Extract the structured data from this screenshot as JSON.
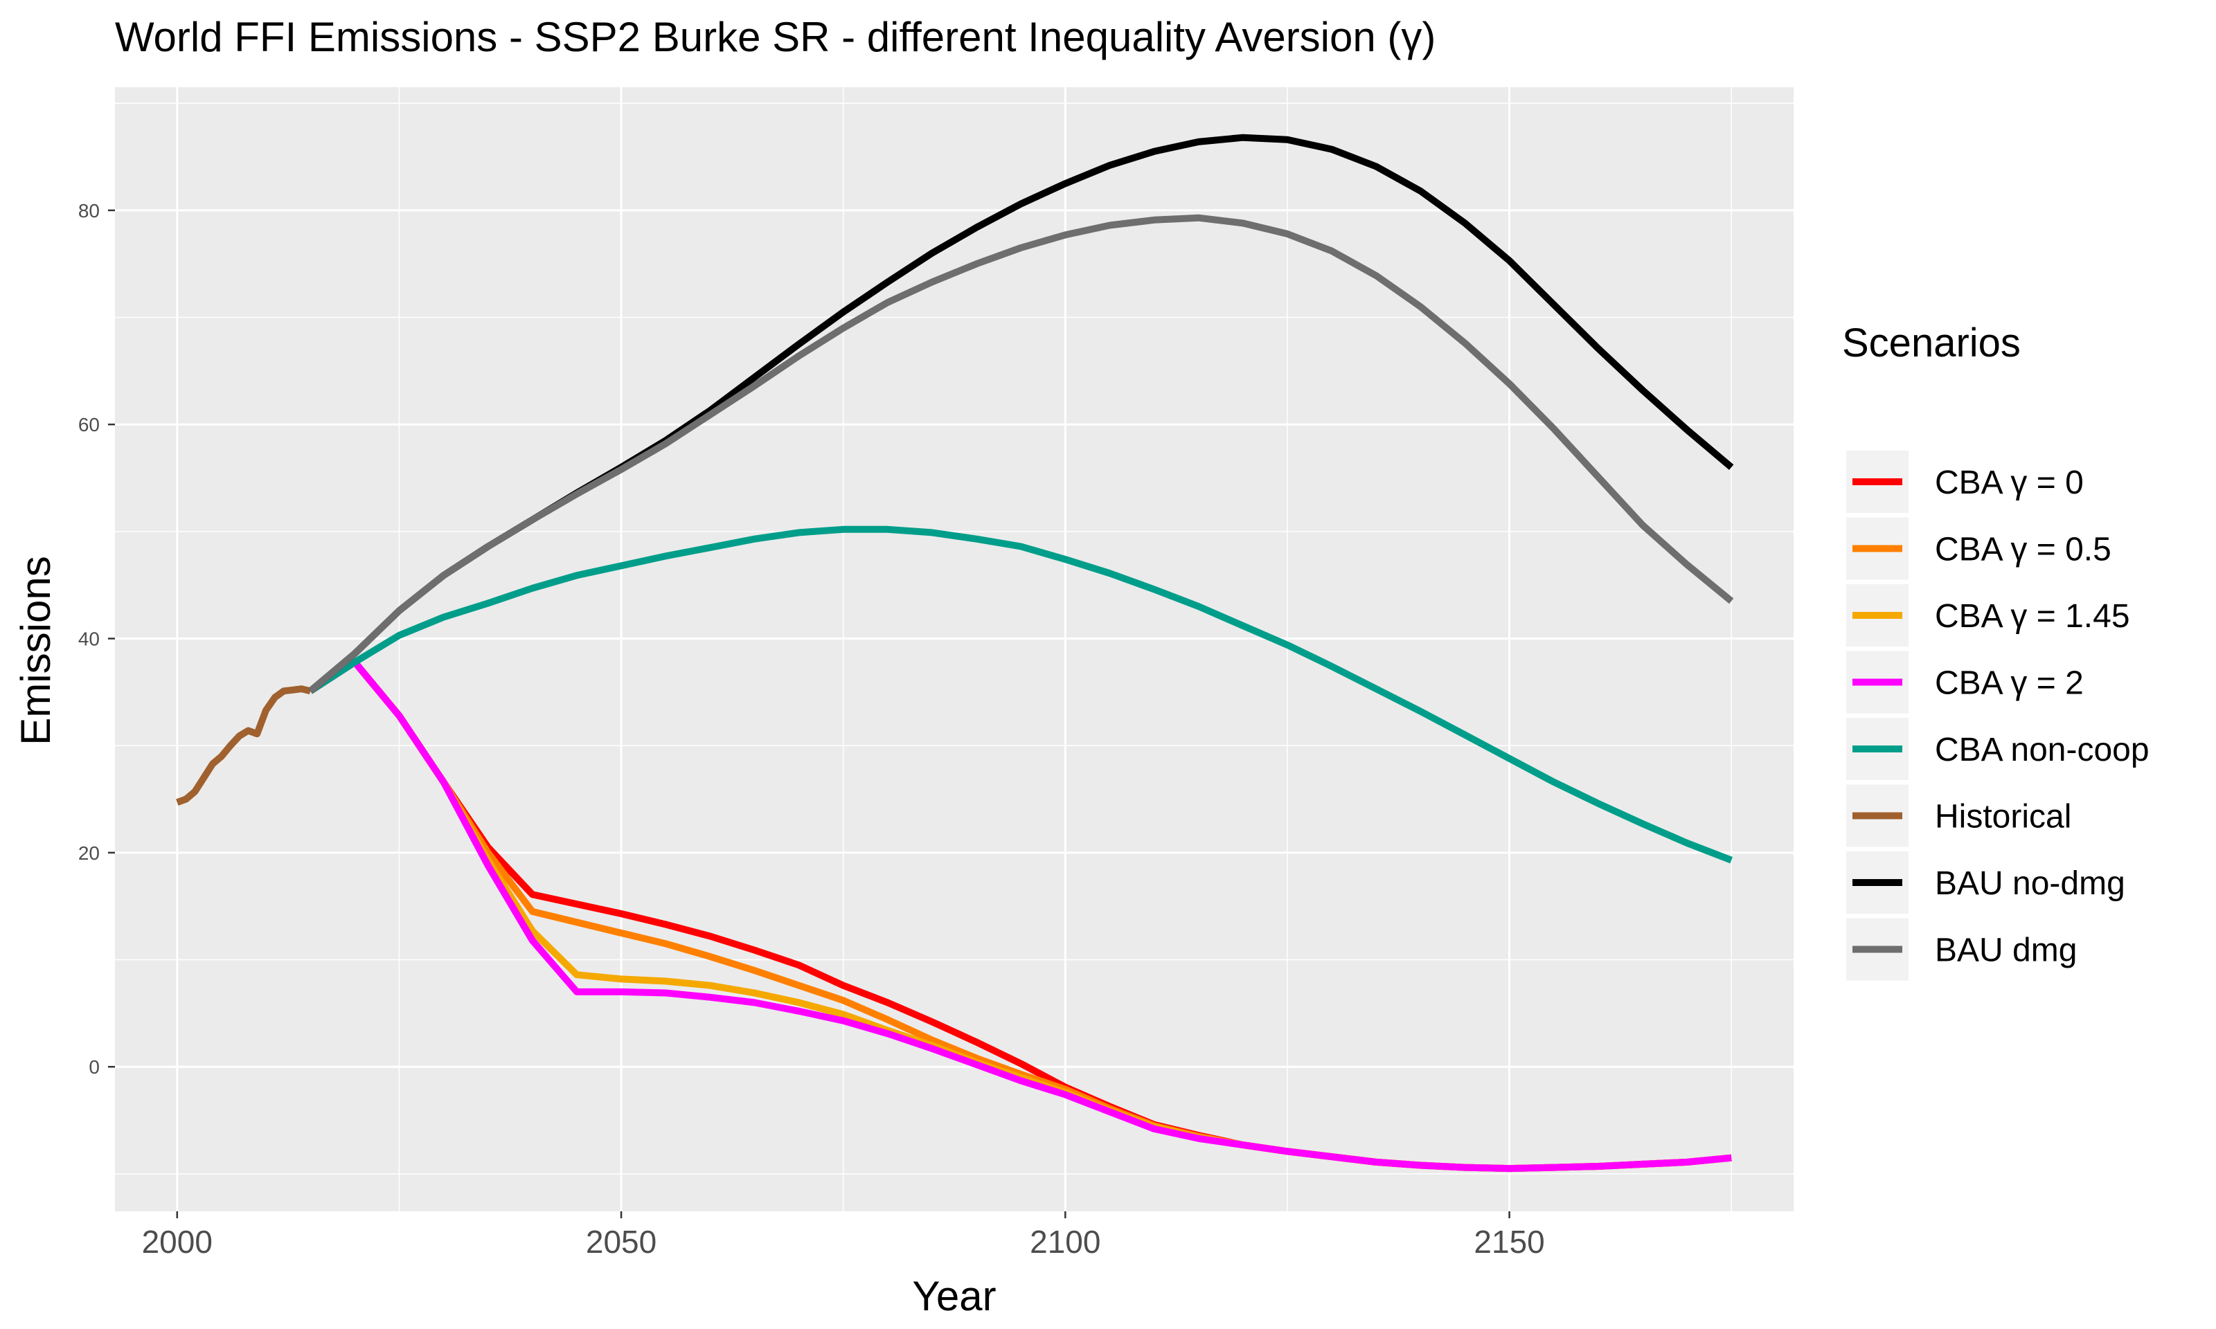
{
  "chart_data": {
    "type": "line",
    "title": "World FFI Emissions - SSP2 Burke SR - different Inequality Aversion (γ)",
    "xlabel": "Year",
    "ylabel": "Emissions",
    "xlim": [
      1993,
      2182
    ],
    "ylim": [
      -13.5,
      91.5
    ],
    "xticks": [
      2000,
      2050,
      2100,
      2150
    ],
    "yticks": [
      0,
      20,
      40,
      60,
      80
    ],
    "grid": true,
    "legend": {
      "title": "Scenarios",
      "position": "right"
    },
    "panel_background": "#ebebeb",
    "series": [
      {
        "name": "CBA γ = 0",
        "color": "#ff0000",
        "x": [
          2015,
          2020,
          2025,
          2030,
          2035,
          2040,
          2045,
          2050,
          2055,
          2060,
          2065,
          2070,
          2075,
          2080,
          2085,
          2090,
          2095,
          2100,
          2105,
          2110,
          2115,
          2120,
          2125,
          2130,
          2135,
          2140,
          2145,
          2150,
          2155,
          2160,
          2165,
          2170,
          2175
        ],
        "y": [
          35.1,
          37.8,
          32.8,
          26.6,
          20.5,
          16.1,
          15.2,
          14.3,
          13.3,
          12.2,
          10.9,
          9.5,
          7.6,
          6.0,
          4.2,
          2.3,
          0.3,
          -1.9,
          -3.7,
          -5.4,
          -6.4,
          -7.3,
          -7.9,
          -8.4,
          -8.9,
          -9.2,
          -9.4,
          -9.5,
          -9.4,
          -9.3,
          -9.1,
          -8.9,
          -8.5
        ]
      },
      {
        "name": "CBA γ = 0.5",
        "color": "#ff8000",
        "x": [
          2015,
          2020,
          2025,
          2030,
          2035,
          2040,
          2045,
          2050,
          2055,
          2060,
          2065,
          2070,
          2075,
          2080,
          2085,
          2090,
          2095,
          2100,
          2105,
          2110,
          2115,
          2120,
          2125,
          2130,
          2135,
          2140,
          2145,
          2150,
          2155,
          2160,
          2165,
          2170,
          2175
        ],
        "y": [
          35.1,
          37.8,
          32.8,
          26.6,
          20.0,
          14.5,
          13.5,
          12.5,
          11.5,
          10.3,
          9.0,
          7.6,
          6.2,
          4.4,
          2.5,
          0.8,
          -0.7,
          -2.1,
          -3.9,
          -5.5,
          -6.5,
          -7.3,
          -7.9,
          -8.4,
          -8.9,
          -9.2,
          -9.4,
          -9.5,
          -9.4,
          -9.3,
          -9.1,
          -8.9,
          -8.5
        ]
      },
      {
        "name": "CBA γ = 1.45",
        "color": "#f5a800",
        "x": [
          2015,
          2020,
          2025,
          2030,
          2035,
          2040,
          2045,
          2050,
          2055,
          2060,
          2065,
          2070,
          2075,
          2080,
          2085,
          2090,
          2095,
          2100,
          2105,
          2110,
          2115,
          2120,
          2125,
          2130,
          2135,
          2140,
          2145,
          2150,
          2155,
          2160,
          2165,
          2170,
          2175
        ],
        "y": [
          35.1,
          37.8,
          32.8,
          26.6,
          19.3,
          12.7,
          8.6,
          8.2,
          8.0,
          7.6,
          6.9,
          6.0,
          4.9,
          3.4,
          2.0,
          0.4,
          -1.0,
          -2.4,
          -4.1,
          -5.6,
          -6.6,
          -7.3,
          -7.9,
          -8.4,
          -8.9,
          -9.2,
          -9.4,
          -9.5,
          -9.4,
          -9.3,
          -9.1,
          -8.9,
          -8.5
        ]
      },
      {
        "name": "CBA γ = 2",
        "color": "#ff00ff",
        "x": [
          2015,
          2020,
          2025,
          2030,
          2035,
          2040,
          2045,
          2050,
          2055,
          2060,
          2065,
          2070,
          2075,
          2080,
          2085,
          2090,
          2095,
          2100,
          2105,
          2110,
          2115,
          2120,
          2125,
          2130,
          2135,
          2140,
          2145,
          2150,
          2155,
          2160,
          2165,
          2170,
          2175
        ],
        "y": [
          35.1,
          37.8,
          32.8,
          26.6,
          18.8,
          11.8,
          7.0,
          7.0,
          6.9,
          6.5,
          6.0,
          5.2,
          4.3,
          3.1,
          1.7,
          0.2,
          -1.3,
          -2.6,
          -4.2,
          -5.8,
          -6.7,
          -7.3,
          -7.9,
          -8.4,
          -8.9,
          -9.2,
          -9.4,
          -9.5,
          -9.4,
          -9.3,
          -9.1,
          -8.9,
          -8.5
        ]
      },
      {
        "name": "CBA non-coop",
        "color": "#009e8a",
        "x": [
          2015,
          2020,
          2025,
          2030,
          2035,
          2040,
          2045,
          2050,
          2055,
          2060,
          2065,
          2070,
          2075,
          2080,
          2085,
          2090,
          2095,
          2100,
          2105,
          2110,
          2115,
          2120,
          2125,
          2130,
          2135,
          2140,
          2145,
          2150,
          2155,
          2160,
          2165,
          2170,
          2175
        ],
        "y": [
          35.1,
          37.8,
          40.3,
          42.0,
          43.3,
          44.7,
          45.9,
          46.8,
          47.7,
          48.5,
          49.3,
          49.9,
          50.2,
          50.2,
          49.9,
          49.3,
          48.6,
          47.4,
          46.1,
          44.6,
          43.0,
          41.2,
          39.4,
          37.4,
          35.3,
          33.2,
          31.0,
          28.8,
          26.6,
          24.6,
          22.7,
          20.9,
          19.3
        ]
      },
      {
        "name": "Historical",
        "color": "#a0612f",
        "x": [
          2000,
          2001,
          2002,
          2003,
          2004,
          2005,
          2006,
          2007,
          2008,
          2009,
          2010,
          2011,
          2012,
          2013,
          2014,
          2015
        ],
        "y": [
          24.7,
          25.0,
          25.7,
          27.0,
          28.3,
          29.0,
          30.0,
          30.9,
          31.4,
          31.1,
          33.3,
          34.5,
          35.1,
          35.2,
          35.3,
          35.1
        ]
      },
      {
        "name": "BAU no-dmg",
        "color": "#000000",
        "x": [
          2015,
          2020,
          2025,
          2030,
          2035,
          2040,
          2045,
          2050,
          2055,
          2060,
          2065,
          2070,
          2075,
          2080,
          2085,
          2090,
          2095,
          2100,
          2105,
          2110,
          2115,
          2120,
          2125,
          2130,
          2135,
          2140,
          2145,
          2150,
          2155,
          2160,
          2165,
          2170,
          2175
        ],
        "y": [
          35.1,
          38.6,
          42.6,
          45.9,
          48.6,
          51.1,
          53.6,
          56.0,
          58.5,
          61.3,
          64.4,
          67.5,
          70.5,
          73.3,
          76.0,
          78.4,
          80.6,
          82.5,
          84.2,
          85.5,
          86.4,
          86.8,
          86.6,
          85.7,
          84.1,
          81.8,
          78.8,
          75.3,
          71.2,
          67.1,
          63.2,
          59.5,
          56.0
        ]
      },
      {
        "name": "BAU dmg",
        "color": "#6e6e6e",
        "x": [
          2015,
          2020,
          2025,
          2030,
          2035,
          2040,
          2045,
          2050,
          2055,
          2060,
          2065,
          2070,
          2075,
          2080,
          2085,
          2090,
          2095,
          2100,
          2105,
          2110,
          2115,
          2120,
          2125,
          2130,
          2135,
          2140,
          2145,
          2150,
          2155,
          2160,
          2165,
          2170,
          2175
        ],
        "y": [
          35.1,
          38.6,
          42.6,
          45.9,
          48.6,
          51.1,
          53.5,
          55.8,
          58.2,
          60.9,
          63.6,
          66.4,
          69.0,
          71.4,
          73.3,
          75.0,
          76.5,
          77.7,
          78.6,
          79.1,
          79.3,
          78.8,
          77.8,
          76.2,
          73.9,
          71.0,
          67.6,
          63.8,
          59.6,
          55.1,
          50.6,
          46.9,
          43.5
        ]
      }
    ]
  }
}
